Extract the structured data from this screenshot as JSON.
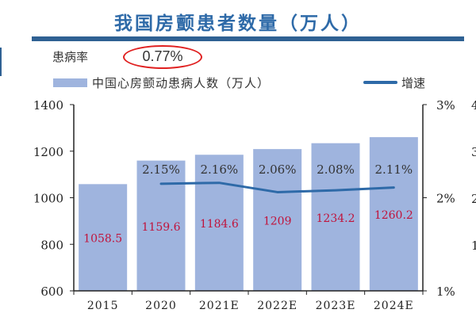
{
  "header": {
    "title": "我国房颤患者数量（万人）",
    "rate_label": "患病率",
    "rate_value": "0.77%"
  },
  "colors": {
    "bar": "#9fb4de",
    "line": "#2e6aa8",
    "bar_label": "#c0143c",
    "title": "#2e6aa8",
    "highlight_oval": "#e02020"
  },
  "chart_data": {
    "type": "bar+line",
    "title": "我国房颤患者数量（万人）",
    "categories": [
      "2015",
      "2020",
      "2021E",
      "2022E",
      "2023E",
      "2024E"
    ],
    "series": [
      {
        "name": "中国心房颤动患病人数（万人）",
        "type": "bar",
        "axis": "left",
        "values": [
          1058.5,
          1159.6,
          1184.6,
          1209,
          1234.2,
          1260.2
        ],
        "labels": [
          "1058.5",
          "1159.6",
          "1184.6",
          "1209",
          "1234.2",
          "1260.2"
        ]
      },
      {
        "name": "增速",
        "type": "line",
        "axis": "right",
        "values": [
          null,
          2.15,
          2.16,
          2.06,
          2.08,
          2.11
        ],
        "labels": [
          "",
          "2.15%",
          "2.16%",
          "2.06%",
          "2.08%",
          "2.11%"
        ]
      }
    ],
    "left_axis": {
      "ylim": [
        600,
        1400
      ],
      "ticks": [
        "600",
        "800",
        "1000",
        "1200",
        "1400"
      ]
    },
    "right_axis": {
      "ylim": [
        1,
        3
      ],
      "unit": "%",
      "ticks": [
        "1%",
        "2%",
        "3%"
      ]
    },
    "clipped_neighbor_axis_ticks": [
      "4",
      "3",
      "2",
      "1"
    ],
    "legend": "top",
    "grid": false
  }
}
